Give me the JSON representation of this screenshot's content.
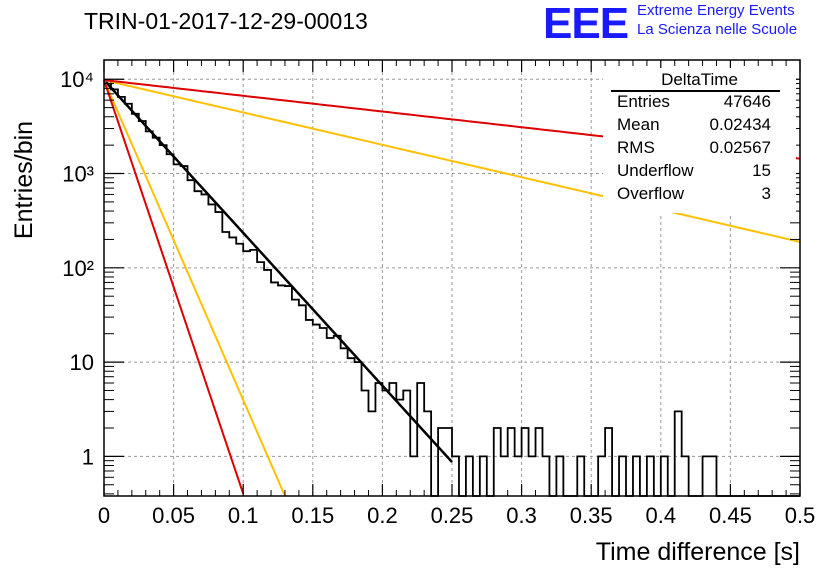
{
  "header": {
    "title": "TRIN-01-2017-12-29-00013",
    "logo_mark": "EEE",
    "logo_line1": "Extreme Energy Events",
    "logo_line2": "La Scienza nelle Scuole",
    "logo_color": "#1a1aff"
  },
  "stats": {
    "name": "DeltaTime",
    "rows": [
      {
        "key": "Entries",
        "value": "47646"
      },
      {
        "key": "Mean",
        "value": "0.02434"
      },
      {
        "key": "RMS",
        "value": "0.02567"
      },
      {
        "key": "Underflow",
        "value": "15"
      },
      {
        "key": "Overflow",
        "value": "3"
      }
    ]
  },
  "chart_data": {
    "type": "line",
    "xlabel": "Time difference [s]",
    "ylabel": "Entries/bin",
    "xlim": [
      0,
      0.5
    ],
    "ylim": [
      0.38,
      16000
    ],
    "ylog": true,
    "grid": true,
    "xticks": [
      0,
      0.05,
      0.1,
      0.15,
      0.2,
      0.25,
      0.3,
      0.35,
      0.4,
      0.45,
      0.5
    ],
    "xtick_labels": [
      "0",
      "0.05",
      "0.1",
      "0.15",
      "0.2",
      "0.25",
      "0.3",
      "0.35",
      "0.4",
      "0.45",
      "0.5"
    ],
    "yticks": [
      1,
      10,
      100,
      1000,
      10000
    ],
    "ytick_labels": [
      "1",
      "10",
      "10²",
      "10³",
      "10⁴"
    ],
    "histogram": {
      "color": "#000000",
      "bin_width": 0.005,
      "counts": [
        9500,
        7800,
        6500,
        5500,
        4300,
        3600,
        2800,
        2400,
        2000,
        1600,
        1250,
        1200,
        850,
        650,
        600,
        470,
        390,
        240,
        210,
        180,
        150,
        155,
        115,
        95,
        70,
        65,
        64,
        46,
        40,
        28,
        25,
        23,
        18,
        19,
        14,
        11,
        10,
        5,
        3,
        6,
        5,
        6,
        4,
        5,
        1,
        6,
        3,
        0,
        2,
        2,
        5,
        0,
        0,
        0,
        0,
        0,
        0,
        0,
        0,
        0,
        0,
        0,
        0,
        0,
        0,
        0,
        0,
        0,
        0,
        0,
        0,
        0,
        0,
        0,
        0,
        0,
        0,
        0,
        0,
        0,
        0,
        0,
        0,
        0,
        0,
        0,
        0,
        0,
        0,
        0,
        0,
        0,
        0,
        0,
        0,
        0,
        0,
        0,
        0,
        0
      ],
      "overrides": [
        {
          "from": 0.25,
          "to": 0.255,
          "v": 1
        },
        {
          "from": 0.255,
          "to": 0.26,
          "v": 0
        },
        {
          "from": 0.26,
          "to": 0.265,
          "v": 1
        },
        {
          "from": 0.265,
          "to": 0.27,
          "v": 0
        },
        {
          "from": 0.27,
          "to": 0.275,
          "v": 1
        },
        {
          "from": 0.275,
          "to": 0.28,
          "v": 0
        },
        {
          "from": 0.28,
          "to": 0.285,
          "v": 2
        },
        {
          "from": 0.285,
          "to": 0.29,
          "v": 1
        },
        {
          "from": 0.29,
          "to": 0.295,
          "v": 2
        },
        {
          "from": 0.295,
          "to": 0.3,
          "v": 1
        },
        {
          "from": 0.3,
          "to": 0.305,
          "v": 2
        },
        {
          "from": 0.305,
          "to": 0.31,
          "v": 1
        },
        {
          "from": 0.31,
          "to": 0.315,
          "v": 2
        },
        {
          "from": 0.315,
          "to": 0.32,
          "v": 1
        },
        {
          "from": 0.32,
          "to": 0.325,
          "v": 0
        },
        {
          "from": 0.325,
          "to": 0.33,
          "v": 1
        },
        {
          "from": 0.33,
          "to": 0.335,
          "v": 0
        },
        {
          "from": 0.335,
          "to": 0.34,
          "v": 0
        },
        {
          "from": 0.34,
          "to": 0.345,
          "v": 1
        },
        {
          "from": 0.345,
          "to": 0.35,
          "v": 0
        },
        {
          "from": 0.35,
          "to": 0.355,
          "v": 0
        },
        {
          "from": 0.355,
          "to": 0.36,
          "v": 1
        },
        {
          "from": 0.36,
          "to": 0.365,
          "v": 2
        },
        {
          "from": 0.365,
          "to": 0.37,
          "v": 0
        },
        {
          "from": 0.37,
          "to": 0.375,
          "v": 1
        },
        {
          "from": 0.375,
          "to": 0.38,
          "v": 0
        },
        {
          "from": 0.38,
          "to": 0.385,
          "v": 1
        },
        {
          "from": 0.385,
          "to": 0.39,
          "v": 0
        },
        {
          "from": 0.39,
          "to": 0.395,
          "v": 1
        },
        {
          "from": 0.395,
          "to": 0.4,
          "v": 0
        },
        {
          "from": 0.4,
          "to": 0.405,
          "v": 1
        },
        {
          "from": 0.405,
          "to": 0.41,
          "v": 0
        },
        {
          "from": 0.41,
          "to": 0.415,
          "v": 3
        },
        {
          "from": 0.415,
          "to": 0.42,
          "v": 1
        },
        {
          "from": 0.42,
          "to": 0.425,
          "v": 0
        },
        {
          "from": 0.425,
          "to": 0.43,
          "v": 0
        },
        {
          "from": 0.43,
          "to": 0.435,
          "v": 1
        },
        {
          "from": 0.435,
          "to": 0.44,
          "v": 1
        },
        {
          "from": 0.44,
          "to": 0.5,
          "v": 0
        }
      ]
    },
    "series": [
      {
        "color": "#000000",
        "width": 2.5,
        "y0": 9800,
        "tau": 0.0268,
        "x_end": 0.25
      },
      {
        "color": "#ffc000",
        "width": 2,
        "y0": 9800,
        "tau": 0.0128,
        "x_end": 0.13
      },
      {
        "color": "#dd0000",
        "width": 2,
        "y0": 9800,
        "tau": 0.0099,
        "x_end": 0.1
      },
      {
        "color": "#ffc000",
        "width": 2,
        "y0": 9800,
        "tau": 0.1265,
        "x_end": 0.5
      },
      {
        "color": "#dd0000",
        "width": 2,
        "y0": 9800,
        "tau": 0.2605,
        "x_end": 0.5
      }
    ]
  }
}
